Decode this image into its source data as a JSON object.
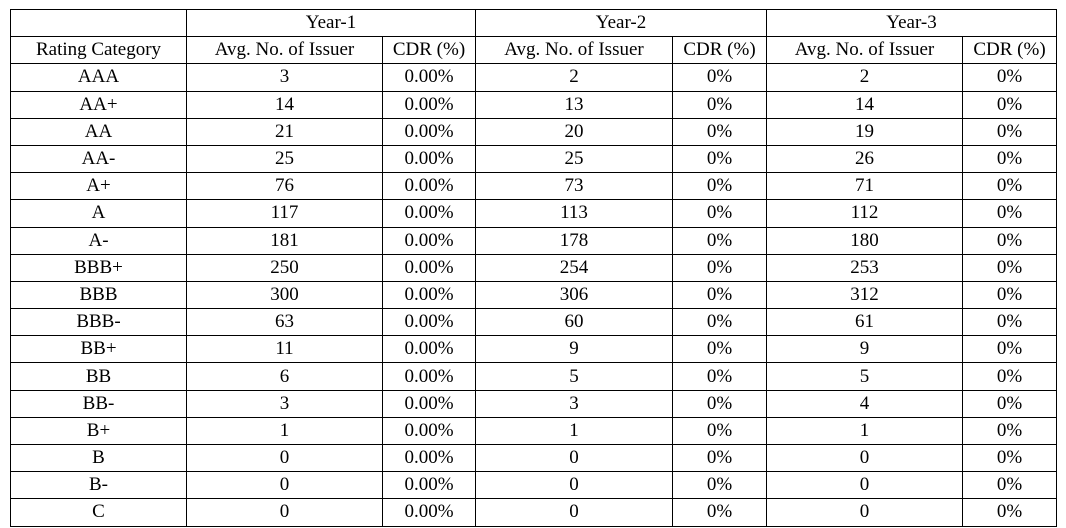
{
  "table": {
    "years": [
      "Year-1",
      "Year-2",
      "Year-3"
    ],
    "headers": [
      "Rating Category",
      "Avg. No. of Issuer",
      "CDR (%)",
      "Avg. No. of Issuer",
      "CDR (%)",
      "Avg. No. of Issuer",
      "CDR (%)"
    ],
    "rows": [
      [
        "AAA",
        "3",
        "0.00%",
        "2",
        "0%",
        "2",
        "0%"
      ],
      [
        "AA+",
        "14",
        "0.00%",
        "13",
        "0%",
        "14",
        "0%"
      ],
      [
        "AA",
        "21",
        "0.00%",
        "20",
        "0%",
        "19",
        "0%"
      ],
      [
        "AA-",
        "25",
        "0.00%",
        "25",
        "0%",
        "26",
        "0%"
      ],
      [
        "A+",
        "76",
        "0.00%",
        "73",
        "0%",
        "71",
        "0%"
      ],
      [
        "A",
        "117",
        "0.00%",
        "113",
        "0%",
        "112",
        "0%"
      ],
      [
        "A-",
        "181",
        "0.00%",
        "178",
        "0%",
        "180",
        "0%"
      ],
      [
        "BBB+",
        "250",
        "0.00%",
        "254",
        "0%",
        "253",
        "0%"
      ],
      [
        "BBB",
        "300",
        "0.00%",
        "306",
        "0%",
        "312",
        "0%"
      ],
      [
        "BBB-",
        "63",
        "0.00%",
        "60",
        "0%",
        "61",
        "0%"
      ],
      [
        "BB+",
        "11",
        "0.00%",
        "9",
        "0%",
        "9",
        "0%"
      ],
      [
        "BB",
        "6",
        "0.00%",
        "5",
        "0%",
        "5",
        "0%"
      ],
      [
        "BB-",
        "3",
        "0.00%",
        "3",
        "0%",
        "4",
        "0%"
      ],
      [
        "B+",
        "1",
        "0.00%",
        "1",
        "0%",
        "1",
        "0%"
      ],
      [
        "B",
        "0",
        "0.00%",
        "0",
        "0%",
        "0",
        "0%"
      ],
      [
        "B-",
        "0",
        "0.00%",
        "0",
        "0%",
        "0",
        "0%"
      ],
      [
        "C",
        "0",
        "0.00%",
        "0",
        "0%",
        "0",
        "0%"
      ]
    ]
  }
}
